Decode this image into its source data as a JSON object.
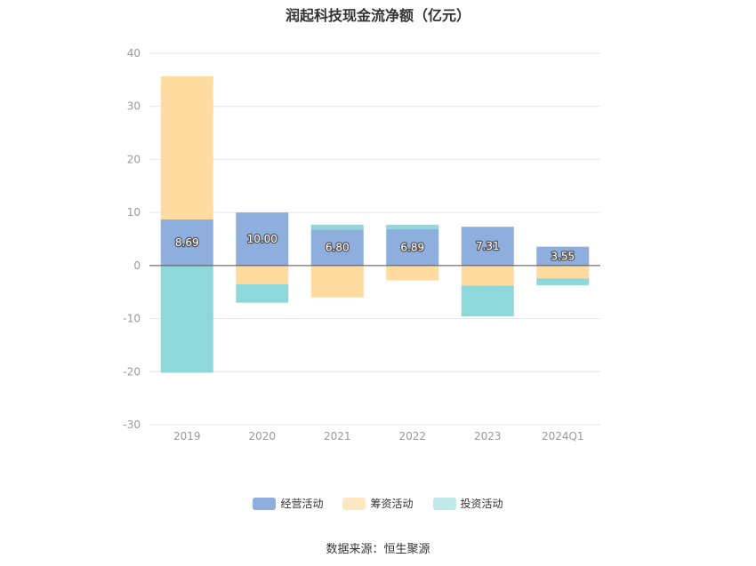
{
  "chart_data": {
    "type": "bar",
    "stacked": true,
    "title": "润起科技现金流净额（亿元）",
    "categories": [
      "2019",
      "2020",
      "2021",
      "2022",
      "2023",
      "2024Q1"
    ],
    "series": [
      {
        "name": "经营活动",
        "color": "#8eaedd",
        "values": [
          8.69,
          10.0,
          6.8,
          6.89,
          7.31,
          3.55
        ]
      },
      {
        "name": "筹资活动",
        "color": "#ffdba0",
        "values": [
          27.0,
          -3.5,
          -6.0,
          -2.8,
          -3.8,
          -2.4
        ]
      },
      {
        "name": "投资活动",
        "color": "#8dd8da",
        "values": [
          -20.2,
          -3.5,
          0.9,
          0.8,
          -5.8,
          -1.3
        ]
      }
    ],
    "data_labels": [
      "8.69",
      "10.00",
      "6.80",
      "6.89",
      "7.31",
      "3.55"
    ],
    "ylim": [
      -30,
      40
    ],
    "yticks": [
      40,
      30,
      20,
      10,
      0,
      -10,
      -20,
      -30
    ],
    "grid": true,
    "legend_position": "bottom"
  },
  "legend": {
    "swatch_colors": [
      "#8eaedd",
      "#ffe8bf",
      "#bfe9ea"
    ]
  },
  "source": "数据来源：恒生聚源"
}
